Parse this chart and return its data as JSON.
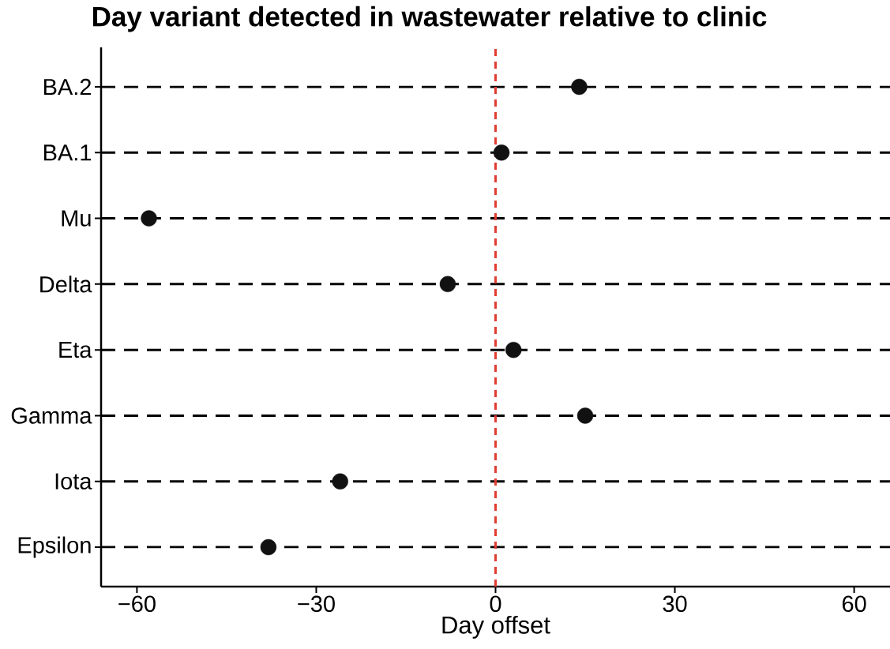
{
  "chart_data": {
    "type": "scatter",
    "orientation": "horizontal",
    "title": "Day variant detected in wastewater relative to clinic",
    "xlabel": "Day offset",
    "categories": [
      "BA.2",
      "BA.1",
      "Mu",
      "Delta",
      "Eta",
      "Gamma",
      "Iota",
      "Epsilon"
    ],
    "values": [
      14,
      1,
      -58,
      -8,
      3,
      15,
      -26,
      -38
    ],
    "color": "#111111",
    "marker": "circle",
    "xlim": [
      -66,
      66
    ],
    "xticks": [
      {
        "value": -60,
        "label": "−60"
      },
      {
        "value": -30,
        "label": "−30"
      },
      0,
      30,
      60
    ],
    "grid": "y",
    "ref_lines": [
      {
        "axis": "x",
        "value": 0,
        "color": "#e03c31",
        "line_style": "dashed"
      }
    ]
  }
}
